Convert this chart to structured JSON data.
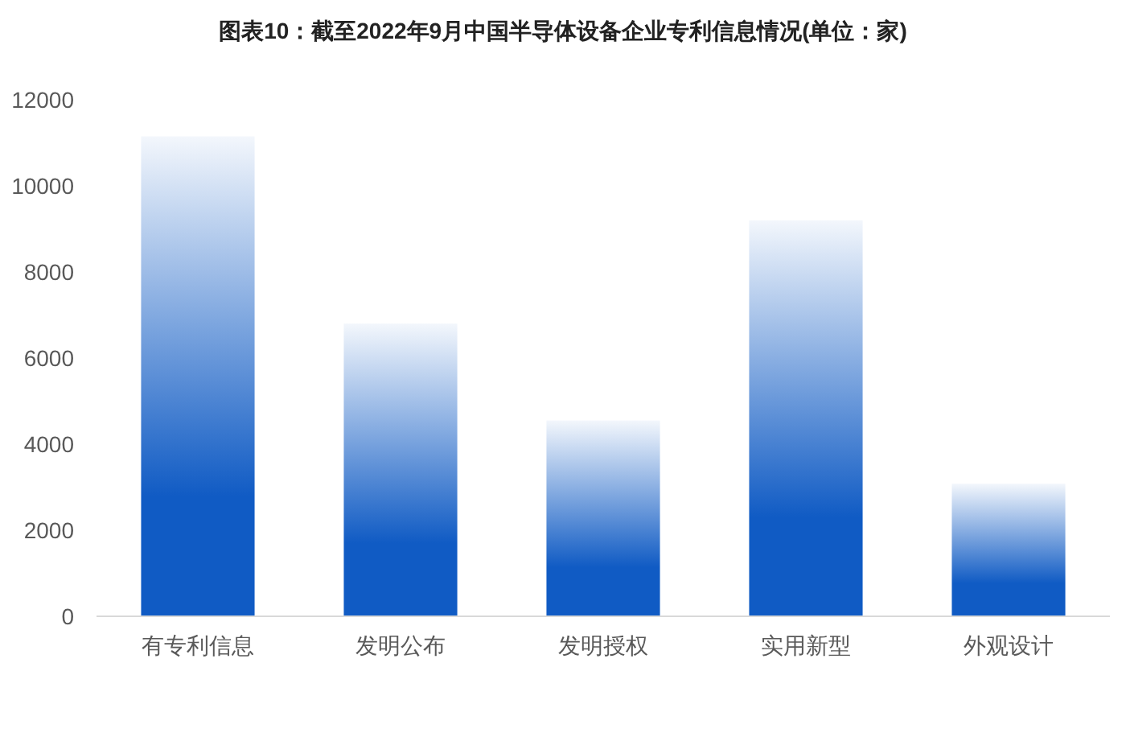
{
  "chart_data": {
    "type": "bar",
    "title": "图表10：截至2022年9月中国半导体设备企业专利信息情况(单位：家)",
    "categories": [
      "有专利信息",
      "发明公布",
      "发明授权",
      "实用新型",
      "外观设计"
    ],
    "values": [
      11150,
      6800,
      4550,
      9200,
      3080
    ],
    "color": "#105bc4",
    "ylim": [
      0,
      12000
    ],
    "yticks": [
      0,
      2000,
      4000,
      6000,
      8000,
      10000,
      12000
    ],
    "grid": false
  }
}
